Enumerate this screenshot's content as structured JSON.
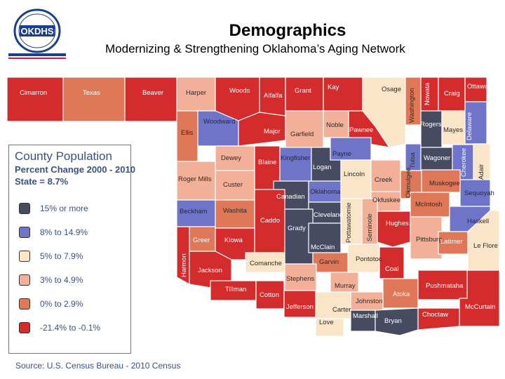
{
  "header": {
    "title": "Demographics",
    "subtitle": "Modernizing & Strengthening Oklahoma’s Aging Network",
    "logo_text": "OKDHS"
  },
  "legend": {
    "title": "County Population",
    "subtitle": "Percent Change 2000 - 2010",
    "state": "State = 8.7%",
    "items": [
      {
        "label": "15% or more",
        "color": "#474b62"
      },
      {
        "label": "8% to 14.9%",
        "color": "#6e74c8"
      },
      {
        "label": "5% to 7.9%",
        "color": "#fbe5c9"
      },
      {
        "label": "3% to 4.9%",
        "color": "#f3b098"
      },
      {
        "label": "0% to 2.9%",
        "color": "#df7759"
      },
      {
        "label": "-21.4% to -0.1%",
        "color": "#d42c2c"
      }
    ]
  },
  "source": "Source: U.S. Census Bureau - 2010 Census",
  "counties": {
    "cimarron": "Cimarron",
    "texas": "Texas",
    "beaver": "Beaver",
    "harper": "Harper",
    "woods": "Woods",
    "alfalfa": "Alfalfa",
    "grant": "Grant",
    "kay": "Kay",
    "osage": "Osage",
    "washington": "Washington",
    "nowata": "Nowata",
    "craig": "Craig",
    "ottawa": "Ottawa",
    "ellis": "Ellis",
    "woodward": "Woodward",
    "major": "Major",
    "garfield": "Garfield",
    "noble": "Noble",
    "pawnee": "Pawnee",
    "rogers": "Rogers",
    "mayes": "Mayes",
    "delaware": "Delaware",
    "dewey": "Dewey",
    "blaine": "Blaine",
    "kingfisher": "Kingfisher",
    "logan": "Logan",
    "payne": "Payne",
    "tulsa": "Tulsa",
    "wagoner": "Wagoner",
    "cherokee": "Cherokee",
    "adair": "Adair",
    "roger_mills": "Roger Mills",
    "custer": "Custer",
    "lincoln": "Lincoln",
    "creek": "Creek",
    "okmulgee": "Okmulgee",
    "muskogee": "Muskogee",
    "sequoyah": "Sequoyah",
    "canadian": "Canadian",
    "oklahoma": "Oklahoma",
    "okfuskee": "Okfuskee",
    "mcintosh": "McIntosh",
    "beckham": "Beckham",
    "washita": "Washita",
    "caddo": "Caddo",
    "cleveland": "Cleveland",
    "pottawatomie": "Pottawatomie",
    "seminole": "Seminole",
    "hughes": "Hughes",
    "haskell": "Haskell",
    "grady": "Grady",
    "pittsburg": "Pittsburg",
    "latimer": "Latimer",
    "le_flore": "Le Flore",
    "greer": "Greer",
    "kiowa": "Kiowa",
    "harmon": "Harmon",
    "mcclain": "McClain",
    "garvin": "Garvin",
    "pontotoc": "Pontotoc",
    "coal": "Coal",
    "jackson": "Jackson",
    "comanche": "Comanche",
    "stephens": "Stephens",
    "murray": "Murray",
    "tillman": "Tillman",
    "cotton": "Cotton",
    "atoka": "Atoka",
    "pushmataha": "Pushmataha",
    "jefferson": "Jefferson",
    "carter": "Carter",
    "johnston": "Johnston",
    "mccurtain": "McCurtain",
    "love": "Love",
    "marshall": "Marshall",
    "bryan": "Bryan",
    "choctaw": "Choctaw"
  }
}
